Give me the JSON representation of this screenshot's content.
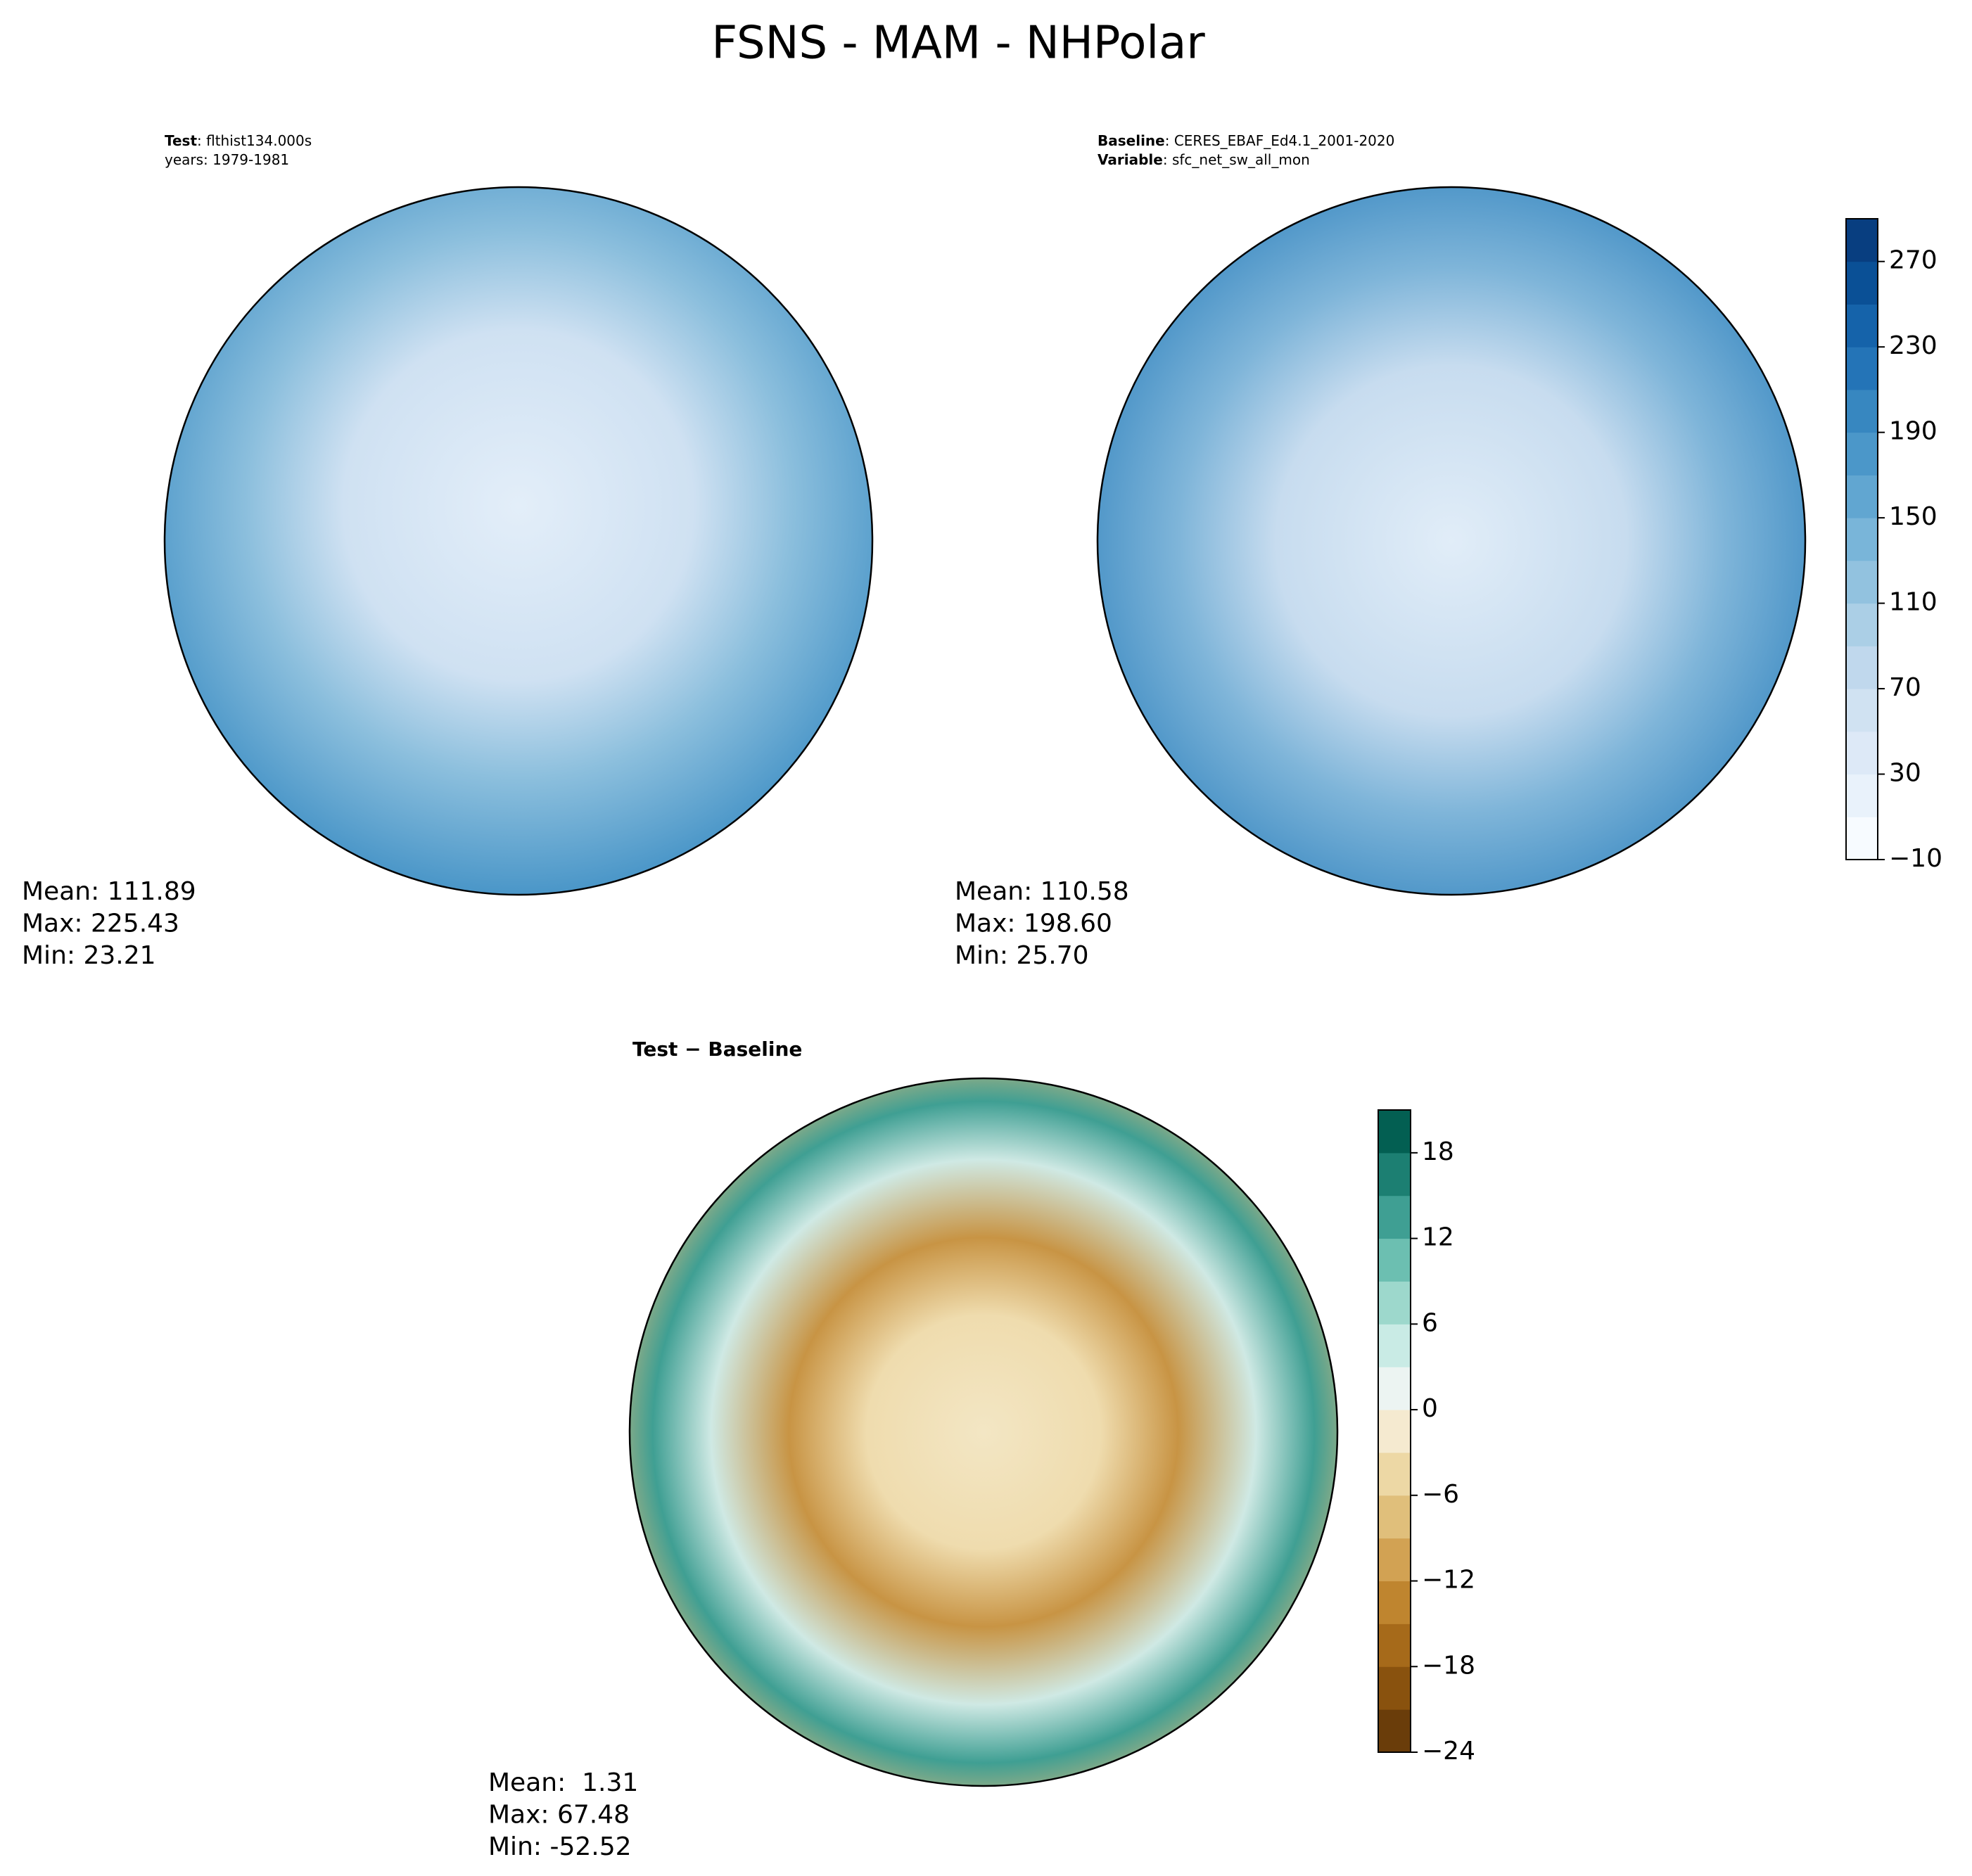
{
  "title": "FSNS - MAM - NHPolar",
  "panels": [
    {
      "label": [
        {
          "bold": "Test",
          "text": ": flthist134.000s"
        },
        {
          "text": "years: 1979-1981"
        }
      ],
      "stats": [
        "Mean: 111.89",
        "Max: 225.43",
        "Min: 23.21"
      ]
    },
    {
      "label": [
        {
          "bold": "Baseline",
          "text": ": CERES_EBAF_Ed4.1_2001-2020"
        },
        {
          "bold": "Variable",
          "text": ": sfc_net_sw_all_mon"
        }
      ],
      "stats": [
        "Mean: 110.58",
        "Max: 198.60",
        "Min: 25.70"
      ]
    },
    {
      "label": [
        {
          "bold": "Test − Baseline"
        }
      ],
      "stats": [
        "Mean:  1.31",
        "Max: 67.48",
        "Min: -52.52"
      ]
    }
  ],
  "colorbars": [
    {
      "lim": [
        -10,
        290
      ],
      "ticks": [
        {
          "value": -10,
          "label": "−10"
        },
        30,
        70,
        110,
        150,
        190,
        230,
        270
      ],
      "colors": [
        "#f7fbff",
        "#e9f2fb",
        "#dde9f7",
        "#d0e2f2",
        "#c0d8ed",
        "#abcfe6",
        "#92c2df",
        "#79b5d9",
        "#61a6d1",
        "#4b97c9",
        "#3787c0",
        "#2474b7",
        "#1563aa",
        "#0a5096",
        "#083e80"
      ]
    },
    {
      "lim": [
        -24,
        21
      ],
      "ticks": [
        {
          "value": -24,
          "label": "−24"
        },
        {
          "value": -18,
          "label": "−18"
        },
        {
          "value": -12,
          "label": "−12"
        },
        {
          "value": -6,
          "label": "−6"
        },
        0,
        6,
        12,
        18
      ],
      "colors": [
        "#6a3d0a",
        "#89520e",
        "#a66a1a",
        "#bf852f",
        "#d2a253",
        "#e0bf7b",
        "#edd8a5",
        "#f5ead0",
        "#ecf4f2",
        "#c9ebe5",
        "#9dd8cc",
        "#6cbfb1",
        "#3f9f93",
        "#1c7f72",
        "#035f52"
      ]
    }
  ]
}
